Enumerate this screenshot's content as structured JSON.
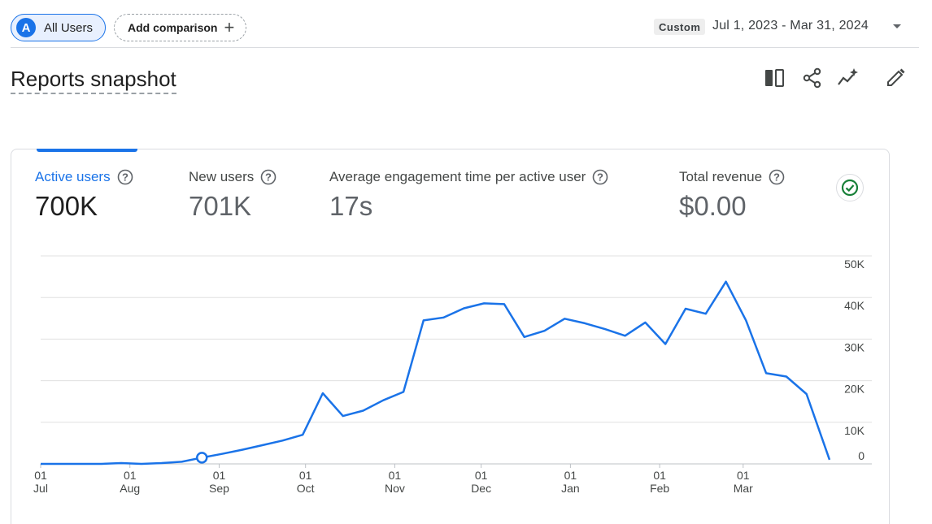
{
  "header": {
    "segment_chip": {
      "avatar_letter": "A",
      "label": "All Users"
    },
    "add_comparison": {
      "label": "Add comparison",
      "icon": "plus-icon"
    },
    "date_badge": "Custom",
    "date_range": "Jul 1, 2023 - Mar 31, 2024"
  },
  "page": {
    "title": "Reports snapshot"
  },
  "toolbar": {
    "icons": [
      "compare-icon",
      "share-icon",
      "insights-icon",
      "edit-icon"
    ]
  },
  "metrics": [
    {
      "label": "Active users",
      "value": "700K",
      "active": true
    },
    {
      "label": "New users",
      "value": "701K",
      "active": false
    },
    {
      "label": "Average engagement time per active user",
      "value": "17s",
      "active": false
    },
    {
      "label": "Total revenue",
      "value": "$0.00",
      "active": false
    }
  ],
  "colors": {
    "accent": "#1a73e8",
    "line": "#1a73e8",
    "grid": "#e0e0e0",
    "check": "#188038"
  },
  "chart_data": {
    "type": "line",
    "series": [
      {
        "values": [
          {
            "x": "2023-07-01",
            "y": 0
          },
          {
            "x": "2023-07-08",
            "y": 0
          },
          {
            "x": "2023-07-15",
            "y": 0
          },
          {
            "x": "2023-07-22",
            "y": 0
          },
          {
            "x": "2023-07-29",
            "y": 200
          },
          {
            "x": "2023-08-05",
            "y": 0
          },
          {
            "x": "2023-08-12",
            "y": 200
          },
          {
            "x": "2023-08-19",
            "y": 500
          },
          {
            "x": "2023-08-26",
            "y": 1500
          },
          {
            "x": "2023-09-02",
            "y": 2400
          },
          {
            "x": "2023-09-09",
            "y": 3400
          },
          {
            "x": "2023-09-16",
            "y": 4500
          },
          {
            "x": "2023-09-23",
            "y": 5600
          },
          {
            "x": "2023-09-30",
            "y": 7000
          },
          {
            "x": "2023-10-07",
            "y": 17000
          },
          {
            "x": "2023-10-14",
            "y": 11500
          },
          {
            "x": "2023-10-21",
            "y": 12800
          },
          {
            "x": "2023-10-28",
            "y": 15300
          },
          {
            "x": "2023-11-04",
            "y": 17300
          },
          {
            "x": "2023-11-11",
            "y": 34500
          },
          {
            "x": "2023-11-18",
            "y": 35200
          },
          {
            "x": "2023-11-25",
            "y": 37400
          },
          {
            "x": "2023-12-02",
            "y": 38600
          },
          {
            "x": "2023-12-09",
            "y": 38400
          },
          {
            "x": "2023-12-16",
            "y": 30500
          },
          {
            "x": "2023-12-23",
            "y": 32000
          },
          {
            "x": "2023-12-30",
            "y": 34900
          },
          {
            "x": "2024-01-06",
            "y": 33800
          },
          {
            "x": "2024-01-13",
            "y": 32400
          },
          {
            "x": "2024-01-20",
            "y": 30800
          },
          {
            "x": "2024-01-27",
            "y": 34000
          },
          {
            "x": "2024-02-03",
            "y": 28800
          },
          {
            "x": "2024-02-10",
            "y": 37300
          },
          {
            "x": "2024-02-17",
            "y": 36100
          },
          {
            "x": "2024-02-24",
            "y": 43800
          },
          {
            "x": "2024-03-02",
            "y": 34500
          },
          {
            "x": "2024-03-09",
            "y": 21800
          },
          {
            "x": "2024-03-16",
            "y": 21000
          },
          {
            "x": "2024-03-23",
            "y": 16800
          },
          {
            "x": "2024-03-31",
            "y": 1000
          }
        ]
      }
    ],
    "highlight_point": {
      "x": "2023-08-26",
      "y": 1500
    },
    "ylim": [
      0,
      50000
    ],
    "y_ticks": [
      "50K",
      "40K",
      "30K",
      "20K",
      "10K",
      "0"
    ],
    "y_tick_values": [
      50000,
      40000,
      30000,
      20000,
      10000,
      0
    ],
    "x_ticks": [
      {
        "x": "2023-07-01",
        "day": "01",
        "month": "Jul"
      },
      {
        "x": "2023-08-01",
        "day": "01",
        "month": "Aug"
      },
      {
        "x": "2023-09-01",
        "day": "01",
        "month": "Sep"
      },
      {
        "x": "2023-10-01",
        "day": "01",
        "month": "Oct"
      },
      {
        "x": "2023-11-01",
        "day": "01",
        "month": "Nov"
      },
      {
        "x": "2023-12-01",
        "day": "01",
        "month": "Dec"
      },
      {
        "x": "2024-01-01",
        "day": "01",
        "month": "Jan"
      },
      {
        "x": "2024-02-01",
        "day": "01",
        "month": "Feb"
      },
      {
        "x": "2024-03-01",
        "day": "01",
        "month": "Mar"
      }
    ],
    "grid": true,
    "y_axis_position": "right"
  }
}
